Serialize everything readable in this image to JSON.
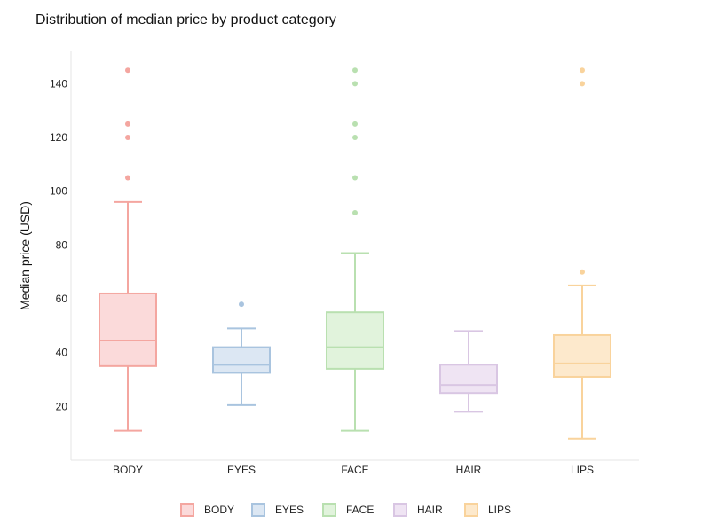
{
  "title": "Distribution of median price by product category",
  "chart_data": {
    "type": "box",
    "title": "Distribution of median price by product category",
    "xlabel": "",
    "ylabel": "Median price (USD)",
    "ylim": [
      0,
      152
    ],
    "yticks": [
      20,
      40,
      60,
      80,
      100,
      120,
      140
    ],
    "grid": false,
    "legend_position": "bottom",
    "categories": [
      "BODY",
      "EYES",
      "FACE",
      "HAIR",
      "LIPS"
    ],
    "series": [
      {
        "category": "BODY",
        "min": 11,
        "q1": 35,
        "median": 44.5,
        "q3": 62,
        "max": 96,
        "outliers": [
          105,
          120,
          125,
          145
        ],
        "color": "#f4a6a0",
        "fill": "#fbdada"
      },
      {
        "category": "EYES",
        "min": 20.5,
        "q1": 32.5,
        "median": 35.5,
        "q3": 42,
        "max": 49,
        "outliers": [
          58
        ],
        "color": "#a9c4df",
        "fill": "#dce7f3"
      },
      {
        "category": "FACE",
        "min": 11,
        "q1": 34,
        "median": 42,
        "q3": 55,
        "max": 77,
        "outliers": [
          92,
          105,
          120,
          125,
          140,
          145
        ],
        "color": "#b9e0b0",
        "fill": "#e1f3dc"
      },
      {
        "category": "HAIR",
        "min": 18,
        "q1": 25,
        "median": 28,
        "q3": 35.5,
        "max": 48,
        "outliers": [],
        "color": "#d9c6e3",
        "fill": "#efe4f3"
      },
      {
        "category": "LIPS",
        "min": 8,
        "q1": 31,
        "median": 36,
        "q3": 46.5,
        "max": 65,
        "outliers": [
          70,
          140,
          145
        ],
        "color": "#f9d39c",
        "fill": "#fde9cc"
      }
    ]
  }
}
